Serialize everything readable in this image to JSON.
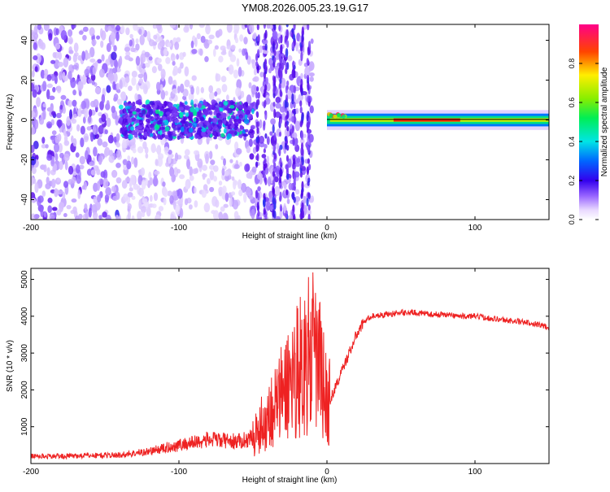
{
  "title": "YM08.2026.005.23.19.G17",
  "chart_data": [
    {
      "type": "heatmap",
      "name": "spectrogram",
      "xlabel": "Height of straight line (km)",
      "ylabel": "Frequency (Hz)",
      "xlim": [
        -200,
        150
      ],
      "ylim": [
        -50,
        48
      ],
      "xticks": [
        -200,
        -100,
        0,
        100
      ],
      "yticks": [
        -40,
        -20,
        0,
        20,
        40
      ],
      "colorbar": {
        "label": "Normalized spectral amplitude",
        "range": [
          0,
          1
        ],
        "ticks": [
          "0.0",
          "0.2",
          "0.4",
          "0.6",
          "0.8"
        ]
      },
      "regions": [
        {
          "x_from": -200,
          "x_to": -140,
          "freq_from": -50,
          "freq_to": 48,
          "description": "diffuse purple noise"
        },
        {
          "x_from": -140,
          "x_to": -50,
          "freq_from": -10,
          "freq_to": 10,
          "description": "purple band with cyan/green blobs near 0 Hz"
        },
        {
          "x_from": -50,
          "x_to": -10,
          "freq_from": -50,
          "freq_to": 48,
          "description": "vertical purple streaks"
        },
        {
          "x_from": 0,
          "x_to": 150,
          "freq_from": -3,
          "freq_to": 3,
          "description": "strong line near 0 Hz, red peak around 50-80 km"
        }
      ]
    },
    {
      "type": "line",
      "name": "snr",
      "xlabel": "Height of straight line (km)",
      "ylabel": "SNR (10 * v/v)",
      "xlim": [
        -200,
        150
      ],
      "ylim": [
        0,
        5300
      ],
      "xticks": [
        -200,
        -100,
        0,
        100
      ],
      "yticks": [
        1000,
        2000,
        3000,
        4000,
        5000
      ],
      "color": "#ee2222",
      "series": [
        {
          "name": "SNR",
          "x": [
            -200,
            -180,
            -160,
            -140,
            -120,
            -100,
            -80,
            -60,
            -50,
            -40,
            -30,
            -20,
            -10,
            -5,
            0,
            2,
            5,
            10,
            15,
            20,
            25,
            30,
            40,
            50,
            60,
            70,
            80,
            90,
            100,
            110,
            120,
            130,
            140,
            150
          ],
          "y": [
            200,
            200,
            220,
            230,
            330,
            500,
            650,
            600,
            700,
            1300,
            1900,
            2600,
            3000,
            2700,
            1600,
            1700,
            2000,
            2500,
            3000,
            3500,
            3850,
            4000,
            4050,
            4100,
            4100,
            4050,
            4050,
            4000,
            4000,
            3950,
            3900,
            3850,
            3800,
            3700
          ]
        }
      ]
    }
  ]
}
